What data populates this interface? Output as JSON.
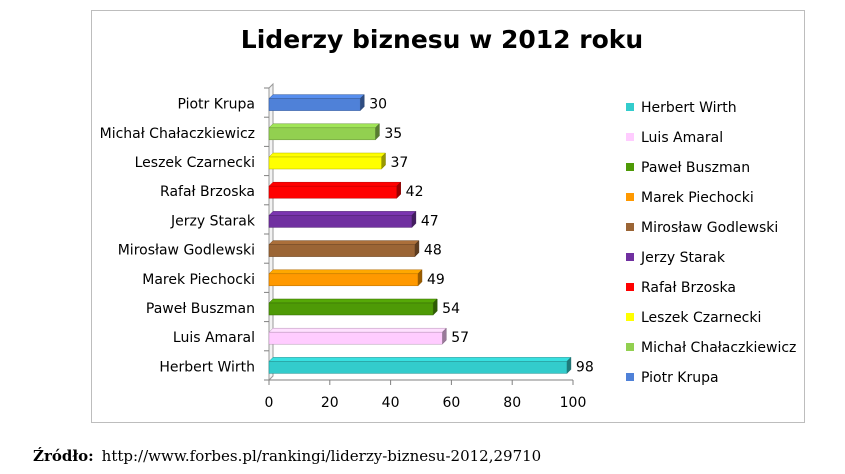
{
  "source": {
    "label": "Źródło:",
    "text": "http://www.forbes.pl/rankingi/liderzy-biznesu-2012,29710"
  },
  "chart_data": {
    "type": "bar",
    "orientation": "horizontal",
    "title": "Liderzy biznesu w 2012 roku",
    "xlabel": "",
    "ylabel": "",
    "xlim": [
      0,
      100
    ],
    "x_ticks": [
      0,
      20,
      40,
      60,
      80,
      100
    ],
    "grid": false,
    "legend_position": "right",
    "categories": [
      "Piotr Krupa",
      "Michał Chałaczkiewicz",
      "Leszek Czarnecki",
      "Rafał Brzoska",
      "Jerzy Starak",
      "Mirosław Godlewski",
      "Marek Piechocki",
      "Paweł Buszman",
      "Luis Amaral",
      "Herbert Wirth"
    ],
    "values": [
      30,
      35,
      37,
      42,
      47,
      48,
      49,
      54,
      57,
      98
    ],
    "colors": [
      "#4f81d8",
      "#92d050",
      "#ffff00",
      "#ff0000",
      "#7030a0",
      "#9b6535",
      "#ff9900",
      "#4e9a06",
      "#ffccff",
      "#33cccc"
    ],
    "legend": [
      "Herbert Wirth",
      "Luis Amaral",
      "Paweł Buszman",
      "Marek Piechocki",
      "Mirosław Godlewski",
      "Jerzy Starak",
      "Rafał Brzoska",
      "Leszek Czarnecki",
      "Michał Chałaczkiewicz",
      "Piotr Krupa"
    ],
    "legend_colors": [
      "#33cccc",
      "#ffccff",
      "#4e9a06",
      "#ff9900",
      "#9b6535",
      "#7030a0",
      "#ff0000",
      "#ffff00",
      "#92d050",
      "#4f81d8"
    ]
  }
}
